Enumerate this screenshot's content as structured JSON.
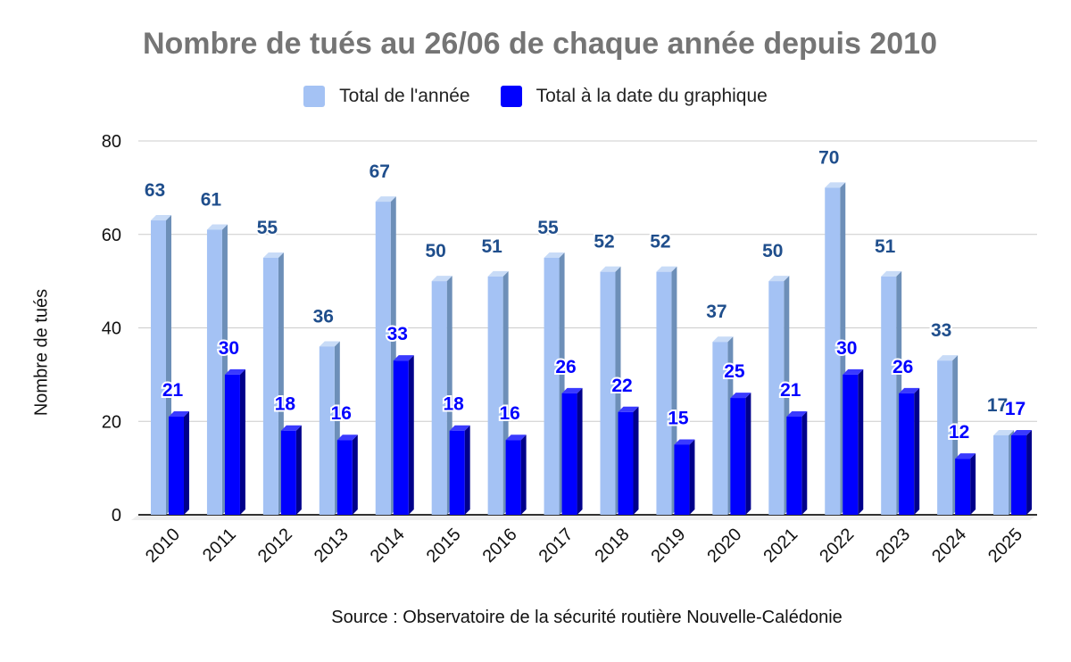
{
  "chart_data": {
    "type": "bar",
    "title": "Nombre de tués au 26/06 de chaque année depuis 2010",
    "ylabel": "Nombre de tués",
    "xlabel": "",
    "categories": [
      "2010",
      "2011",
      "2012",
      "2013",
      "2014",
      "2015",
      "2016",
      "2017",
      "2018",
      "2019",
      "2020",
      "2021",
      "2022",
      "2023",
      "2024",
      "2025"
    ],
    "series": [
      {
        "name": "Total de l'année",
        "color": "#a4c2f4",
        "values": [
          63,
          61,
          55,
          36,
          67,
          50,
          51,
          55,
          52,
          52,
          37,
          50,
          70,
          51,
          33,
          17
        ]
      },
      {
        "name": "Total à la date du graphique",
        "color": "#0000ff",
        "values": [
          21,
          30,
          18,
          16,
          33,
          18,
          16,
          26,
          22,
          15,
          25,
          21,
          30,
          26,
          12,
          17
        ]
      }
    ],
    "ylim": [
      0,
      80
    ],
    "yticks": [
      0,
      20,
      40,
      60,
      80
    ],
    "grid": true,
    "legend": "top-center",
    "label_colors": {
      "Total de l'année": "#1f4e8c",
      "Total à la date du graphique": "#0000ff"
    },
    "source": "Source : Observatoire de la sécurité routière Nouvelle-Calédonie"
  }
}
